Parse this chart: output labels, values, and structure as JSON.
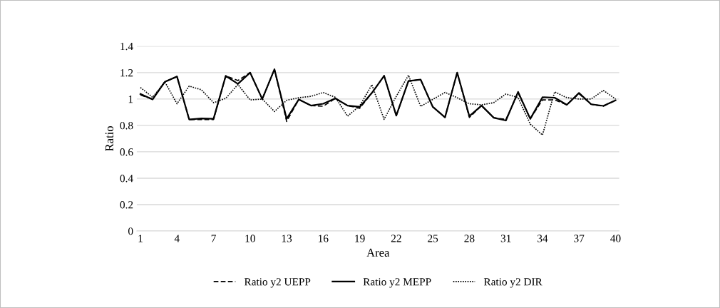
{
  "chart_data": {
    "type": "line",
    "xlabel": "Area",
    "ylabel": "Ratio",
    "categories": [
      "1",
      null,
      null,
      "4",
      null,
      null,
      "7",
      null,
      null,
      "10",
      null,
      null,
      "13",
      null,
      null,
      "16",
      null,
      null,
      "19",
      null,
      null,
      "22",
      null,
      null,
      "25",
      null,
      null,
      "28",
      null,
      null,
      "31",
      null,
      null,
      "34",
      null,
      null,
      "37",
      null,
      null,
      "40"
    ],
    "ylim": [
      0,
      1.4
    ],
    "yticks": [
      0,
      0.2,
      0.4,
      0.6,
      0.8,
      1,
      1.2,
      1.4
    ],
    "grid": "y",
    "legend": "bottom",
    "marker": "none",
    "series": [
      {
        "name": "Ratio y2 UEPP",
        "color": "#000000",
        "line_style": "dashed",
        "values": [
          1.03,
          1.0,
          1.13,
          1.17,
          0.845,
          0.845,
          0.845,
          1.175,
          1.14,
          1.2,
          1.0,
          1.225,
          0.83,
          0.997,
          0.95,
          0.945,
          1.005,
          0.95,
          0.93,
          1.046,
          1.176,
          0.874,
          1.136,
          1.147,
          0.94,
          0.861,
          1.2,
          0.86,
          0.95,
          0.858,
          0.845,
          1.046,
          0.85,
          0.993,
          0.993,
          0.956,
          1.04,
          0.96,
          0.945,
          0.99
        ]
      },
      {
        "name": "Ratio y2 MEPP",
        "color": "#000000",
        "line_style": "solid",
        "values": [
          1.038,
          0.997,
          1.13,
          1.17,
          0.845,
          0.853,
          0.85,
          1.175,
          1.115,
          1.2,
          1.0,
          1.225,
          0.85,
          0.997,
          0.95,
          0.964,
          1.005,
          0.95,
          0.94,
          1.046,
          1.176,
          0.874,
          1.136,
          1.147,
          0.94,
          0.861,
          1.2,
          0.87,
          0.95,
          0.858,
          0.837,
          1.054,
          0.85,
          1.013,
          1.01,
          0.956,
          1.046,
          0.96,
          0.948,
          0.99
        ]
      },
      {
        "name": "Ratio y2 DIR",
        "color": "#000000",
        "line_style": "dotted",
        "values": [
          1.087,
          1.013,
          1.13,
          0.964,
          1.098,
          1.07,
          0.972,
          1.005,
          1.11,
          0.993,
          1.0,
          0.905,
          0.99,
          1.01,
          1.02,
          1.049,
          1.013,
          0.87,
          0.948,
          1.108,
          0.846,
          1.02,
          1.18,
          0.944,
          0.997,
          1.05,
          1.01,
          0.964,
          0.956,
          0.972,
          1.038,
          1.01,
          0.81,
          0.727,
          1.054,
          1.01,
          1.0,
          1.0,
          1.065,
          1.0
        ]
      }
    ]
  }
}
